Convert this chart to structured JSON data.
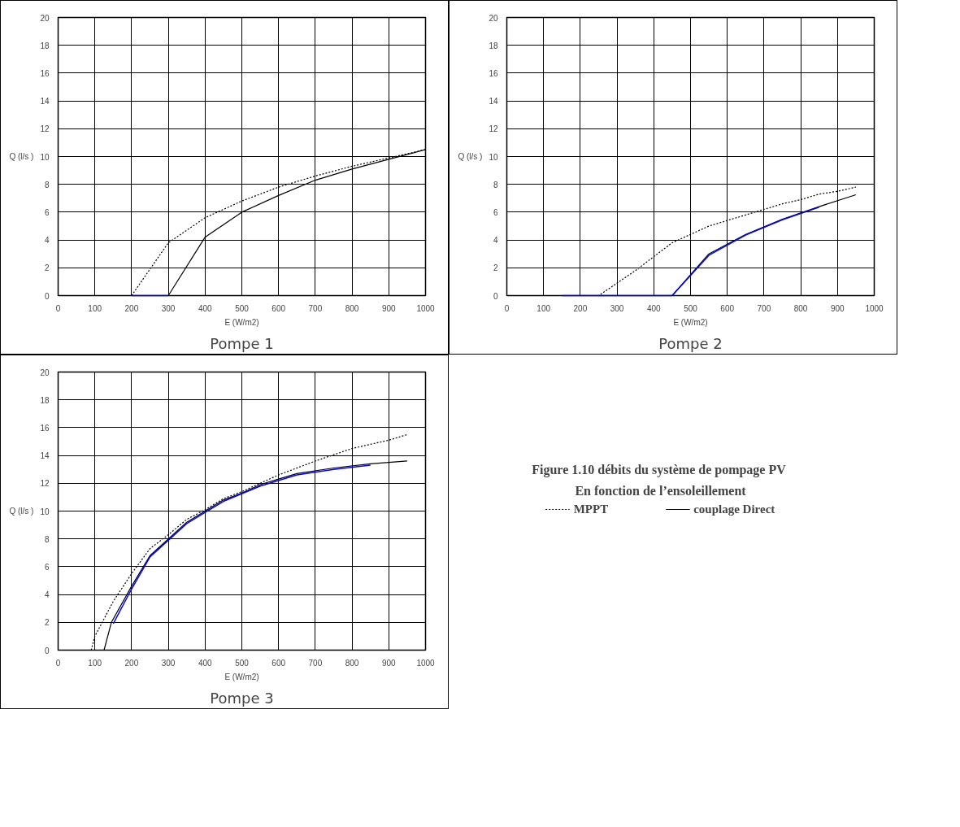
{
  "chart_data": [
    {
      "type": "line",
      "title": "Pompe 1",
      "xlabel": "E (W/m2)",
      "ylabel": "Q (l/s )",
      "xlim": [
        0,
        1000
      ],
      "ylim": [
        0,
        20
      ],
      "xticks": [
        0,
        100,
        200,
        300,
        400,
        500,
        600,
        700,
        800,
        900,
        1000
      ],
      "yticks": [
        0,
        2,
        4,
        6,
        8,
        10,
        12,
        14,
        16,
        18,
        20
      ],
      "grid": true,
      "series": [
        {
          "color": "#000000",
          "line_style": "dotted",
          "x": [
            200,
            300,
            400,
            500,
            600,
            700,
            800,
            900,
            1000
          ],
          "values": [
            0,
            3.8,
            5.6,
            6.8,
            7.8,
            8.6,
            9.3,
            9.9,
            10.5
          ]
        },
        {
          "color": "#000000",
          "line_style": "solid",
          "x": [
            200,
            300,
            400,
            500,
            600,
            700,
            800,
            900,
            1000
          ],
          "values": [
            0,
            0,
            4.2,
            6,
            7.2,
            8.3,
            9.1,
            9.8,
            10.5
          ]
        },
        {
          "color": "#0000ff",
          "line_style": "solid",
          "x": [
            200,
            300
          ],
          "values": [
            0,
            0
          ]
        }
      ]
    },
    {
      "type": "line",
      "title": "Pompe 2",
      "xlabel": "E (W/m2)",
      "ylabel": "Q (l/s )",
      "xlim": [
        0,
        1000
      ],
      "ylim": [
        0,
        20
      ],
      "xticks": [
        0,
        100,
        200,
        300,
        400,
        500,
        600,
        700,
        800,
        900,
        1000
      ],
      "yticks": [
        0,
        2,
        4,
        6,
        8,
        10,
        12,
        14,
        16,
        18,
        20
      ],
      "grid": true,
      "series": [
        {
          "color": "#000000",
          "line_style": "dotted",
          "x": [
            150,
            250,
            300,
            350,
            400,
            450,
            500,
            550,
            600,
            650,
            700,
            750,
            800,
            850,
            900,
            950
          ],
          "values": [
            0,
            0,
            0.9,
            1.8,
            2.8,
            3.8,
            4.4,
            5,
            5.4,
            5.8,
            6.2,
            6.6,
            6.9,
            7.3,
            7.5,
            7.8
          ]
        },
        {
          "color": "#000000",
          "line_style": "solid",
          "x": [
            150,
            450,
            550,
            650,
            750,
            850,
            950
          ],
          "values": [
            0,
            0,
            3,
            4.4,
            5.5,
            6.4,
            7.25
          ]
        },
        {
          "color": "#0000ff",
          "line_style": "solid",
          "x": [
            150,
            450,
            550,
            650,
            750,
            850
          ],
          "values": [
            0,
            0,
            2.9,
            4.35,
            5.45,
            6.35
          ]
        }
      ]
    },
    {
      "type": "line",
      "title": "Pompe 3",
      "xlabel": "E (W/m2)",
      "ylabel": "Q (l/s )",
      "xlim": [
        0,
        1000
      ],
      "ylim": [
        0,
        20
      ],
      "xticks": [
        0,
        100,
        200,
        300,
        400,
        500,
        600,
        700,
        800,
        900,
        1000
      ],
      "yticks": [
        0,
        2,
        4,
        6,
        8,
        10,
        12,
        14,
        16,
        18,
        20
      ],
      "grid": true,
      "legend": "right",
      "annotations": [
        "Figure 1.10  débits du système de pompage PV",
        "En fonction de l’ensoleillement"
      ],
      "series": [
        {
          "name": "MPPT",
          "color": "#000000",
          "line_style": "dotted",
          "x": [
            90,
            100,
            150,
            200,
            250,
            300,
            350,
            400,
            450,
            500,
            550,
            600,
            700,
            800,
            900,
            950
          ],
          "values": [
            0,
            1,
            3.5,
            5.5,
            7.3,
            8.3,
            9.4,
            10.1,
            10.9,
            11.4,
            12,
            12.6,
            13.6,
            14.5,
            15.1,
            15.5
          ]
        },
        {
          "name": "couplage Direct",
          "color": "#000000",
          "line_style": "solid",
          "x": [
            125,
            145,
            200,
            250,
            300,
            350,
            400,
            450,
            500,
            550,
            600,
            650,
            750,
            850,
            950
          ],
          "values": [
            0,
            2,
            4.6,
            6.8,
            8,
            9.2,
            10,
            10.8,
            11.3,
            11.9,
            12.3,
            12.7,
            13.1,
            13.4,
            13.6
          ]
        },
        {
          "color": "#0000ff",
          "line_style": "solid",
          "x": [
            150,
            200,
            250,
            300,
            350,
            400,
            450,
            550,
            650,
            750,
            850
          ],
          "values": [
            1.9,
            4.4,
            6.7,
            7.9,
            9.1,
            9.9,
            10.7,
            11.8,
            12.6,
            13,
            13.3
          ]
        }
      ]
    }
  ]
}
